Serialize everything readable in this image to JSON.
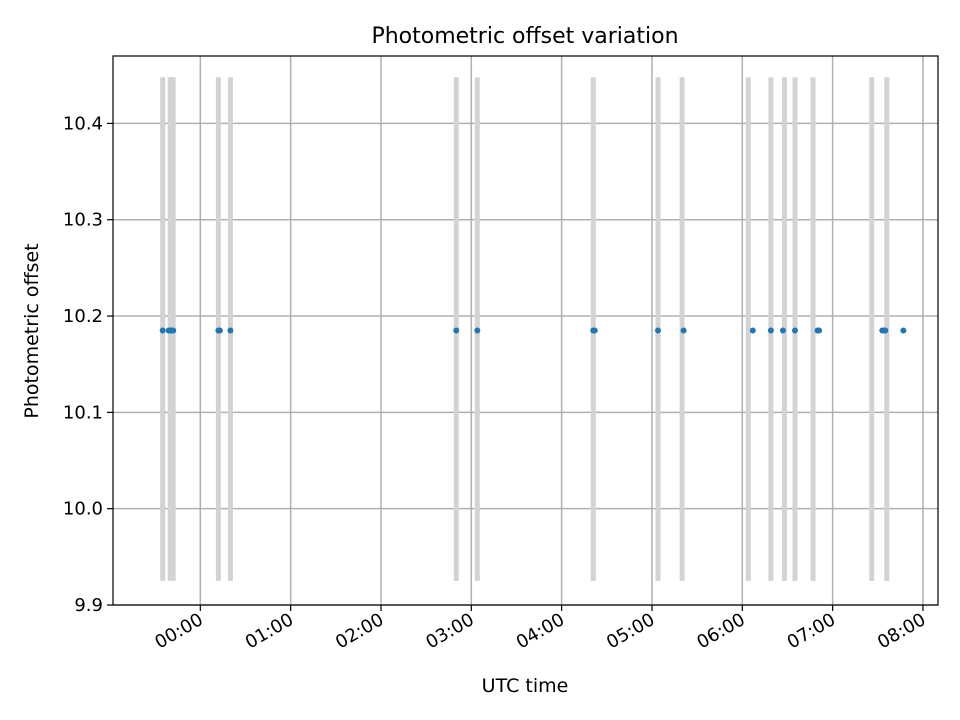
{
  "chart_data": {
    "type": "scatter",
    "title": "Photometric offset variation",
    "xlabel": "UTC time",
    "ylabel": "Photometric offset",
    "xlim": [
      "23:02",
      "08:10"
    ],
    "ylim": [
      9.9,
      10.47
    ],
    "grid": true,
    "x_ticks": [
      "00:00",
      "01:00",
      "02:00",
      "03:00",
      "04:00",
      "05:00",
      "06:00",
      "07:00",
      "08:00"
    ],
    "y_ticks": [
      "9.9",
      "10.0",
      "10.1",
      "10.2",
      "10.3",
      "10.4"
    ],
    "colors": {
      "points": "#1f77b4",
      "bands": "#d3d3d3",
      "grid": "#b0b0b0"
    },
    "exposure_bands": {
      "y_range": [
        9.925,
        10.448
      ],
      "x": [
        "23:35",
        "23:40",
        "23:42",
        "00:12",
        "00:20",
        "02:50",
        "03:04",
        "04:21",
        "05:04",
        "05:20",
        "06:04",
        "06:19",
        "06:28",
        "06:35",
        "06:47",
        "07:26",
        "07:36"
      ]
    },
    "points": {
      "x": [
        "23:35",
        "23:39",
        "23:40",
        "23:41",
        "23:42",
        "00:12",
        "00:13",
        "00:20",
        "02:50",
        "03:04",
        "04:21",
        "04:22",
        "05:04",
        "05:21",
        "06:07",
        "06:19",
        "06:27",
        "06:35",
        "06:50",
        "06:51",
        "07:33",
        "07:34",
        "07:35",
        "07:47"
      ],
      "y": [
        10.185,
        10.185,
        10.185,
        10.185,
        10.185,
        10.185,
        10.185,
        10.185,
        10.185,
        10.185,
        10.185,
        10.185,
        10.185,
        10.185,
        10.185,
        10.185,
        10.185,
        10.185,
        10.185,
        10.185,
        10.185,
        10.185,
        10.185,
        10.185
      ]
    }
  }
}
